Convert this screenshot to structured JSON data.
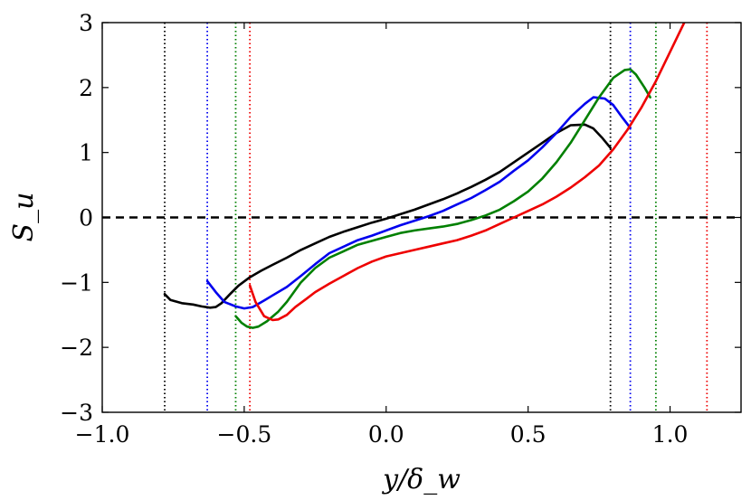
{
  "chart_data": {
    "type": "line",
    "title": "",
    "xlabel": "y/δ_w",
    "ylabel": "S_u",
    "xlim": [
      -1.0,
      1.25
    ],
    "ylim": [
      -3,
      3
    ],
    "xticks": [
      -1.0,
      -0.5,
      0.0,
      0.5,
      1.0
    ],
    "xtick_labels": [
      "−1.0",
      "−0.5",
      "0.0",
      "0.5",
      "1.0"
    ],
    "yticks": [
      -3,
      -2,
      -1,
      0,
      1,
      2,
      3
    ],
    "ytick_labels": [
      "−3",
      "−2",
      "−1",
      "0",
      "1",
      "2",
      "3"
    ],
    "grid": false,
    "legend": "none",
    "zero_line": {
      "y": 0,
      "style": "dashed",
      "color": "#000000"
    },
    "series": [
      {
        "name": "black",
        "color": "#000000",
        "boundaries": [
          -0.78,
          0.79
        ],
        "x": [
          -0.78,
          -0.76,
          -0.72,
          -0.68,
          -0.65,
          -0.62,
          -0.6,
          -0.58,
          -0.55,
          -0.52,
          -0.48,
          -0.44,
          -0.4,
          -0.35,
          -0.3,
          -0.25,
          -0.2,
          -0.15,
          -0.1,
          -0.05,
          0.0,
          0.05,
          0.1,
          0.15,
          0.2,
          0.25,
          0.3,
          0.35,
          0.4,
          0.45,
          0.5,
          0.55,
          0.6,
          0.65,
          0.7,
          0.73,
          0.76,
          0.79
        ],
        "y": [
          -1.18,
          -1.27,
          -1.32,
          -1.34,
          -1.37,
          -1.39,
          -1.38,
          -1.32,
          -1.18,
          -1.05,
          -0.92,
          -0.82,
          -0.73,
          -0.62,
          -0.5,
          -0.4,
          -0.3,
          -0.22,
          -0.15,
          -0.08,
          -0.02,
          0.05,
          0.12,
          0.2,
          0.28,
          0.37,
          0.47,
          0.58,
          0.7,
          0.85,
          1.0,
          1.15,
          1.3,
          1.42,
          1.43,
          1.37,
          1.23,
          1.07
        ]
      },
      {
        "name": "blue",
        "color": "#0000ee",
        "boundaries": [
          -0.63,
          0.86
        ],
        "x": [
          -0.63,
          -0.6,
          -0.57,
          -0.53,
          -0.5,
          -0.47,
          -0.43,
          -0.4,
          -0.35,
          -0.3,
          -0.25,
          -0.2,
          -0.15,
          -0.1,
          -0.05,
          0.0,
          0.05,
          0.1,
          0.15,
          0.2,
          0.25,
          0.3,
          0.35,
          0.4,
          0.45,
          0.5,
          0.55,
          0.6,
          0.65,
          0.7,
          0.73,
          0.77,
          0.8,
          0.83,
          0.86
        ],
        "y": [
          -0.98,
          -1.15,
          -1.3,
          -1.37,
          -1.4,
          -1.38,
          -1.28,
          -1.2,
          -1.07,
          -0.9,
          -0.72,
          -0.55,
          -0.45,
          -0.35,
          -0.28,
          -0.2,
          -0.12,
          -0.05,
          0.02,
          0.1,
          0.2,
          0.3,
          0.42,
          0.55,
          0.72,
          0.88,
          1.08,
          1.3,
          1.55,
          1.75,
          1.85,
          1.83,
          1.73,
          1.55,
          1.38
        ]
      },
      {
        "name": "green",
        "color": "#008000",
        "boundaries": [
          -0.53,
          0.95
        ],
        "x": [
          -0.53,
          -0.51,
          -0.49,
          -0.47,
          -0.45,
          -0.42,
          -0.38,
          -0.35,
          -0.3,
          -0.25,
          -0.2,
          -0.15,
          -0.1,
          -0.05,
          0.0,
          0.05,
          0.1,
          0.15,
          0.2,
          0.25,
          0.3,
          0.35,
          0.4,
          0.45,
          0.5,
          0.55,
          0.6,
          0.65,
          0.7,
          0.75,
          0.8,
          0.84,
          0.86,
          0.88,
          0.91,
          0.93
        ],
        "y": [
          -1.52,
          -1.62,
          -1.68,
          -1.7,
          -1.68,
          -1.6,
          -1.45,
          -1.3,
          -1.0,
          -0.78,
          -0.62,
          -0.52,
          -0.42,
          -0.36,
          -0.3,
          -0.24,
          -0.2,
          -0.17,
          -0.14,
          -0.1,
          -0.04,
          0.03,
          0.12,
          0.25,
          0.4,
          0.6,
          0.85,
          1.15,
          1.5,
          1.85,
          2.15,
          2.27,
          2.28,
          2.2,
          2.0,
          1.85
        ]
      },
      {
        "name": "red",
        "color": "#ee0000",
        "boundaries": [
          -0.48,
          1.13
        ],
        "x": [
          -0.48,
          -0.46,
          -0.43,
          -0.4,
          -0.38,
          -0.35,
          -0.32,
          -0.28,
          -0.25,
          -0.2,
          -0.15,
          -0.1,
          -0.05,
          0.0,
          0.05,
          0.1,
          0.15,
          0.2,
          0.25,
          0.3,
          0.35,
          0.4,
          0.45,
          0.5,
          0.55,
          0.6,
          0.65,
          0.7,
          0.75,
          0.8,
          0.85,
          0.9,
          0.95,
          1.0,
          1.05
        ],
        "y": [
          -1.05,
          -1.3,
          -1.52,
          -1.58,
          -1.57,
          -1.5,
          -1.38,
          -1.25,
          -1.15,
          -1.02,
          -0.9,
          -0.78,
          -0.68,
          -0.6,
          -0.55,
          -0.5,
          -0.45,
          -0.4,
          -0.35,
          -0.28,
          -0.2,
          -0.1,
          0.0,
          0.1,
          0.2,
          0.32,
          0.46,
          0.62,
          0.8,
          1.05,
          1.35,
          1.7,
          2.1,
          2.55,
          3.0
        ]
      }
    ]
  }
}
